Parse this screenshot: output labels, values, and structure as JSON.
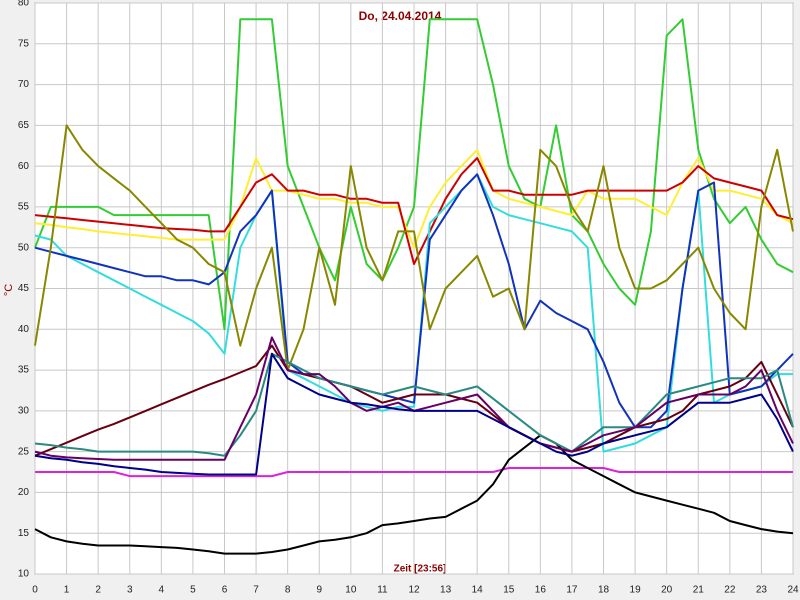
{
  "chart_data": {
    "type": "line",
    "title": "Do, 24.04.2014",
    "x_label": "Zeit [23:56]",
    "y_label": "°C",
    "grid": true,
    "x": [
      0,
      0.5,
      1,
      1.5,
      2,
      2.5,
      3,
      3.5,
      4,
      4.5,
      5,
      5.5,
      6,
      6.5,
      7,
      7.5,
      8,
      8.5,
      9,
      9.5,
      10,
      10.5,
      11,
      11.5,
      12,
      12.5,
      13,
      13.5,
      14,
      14.5,
      15,
      15.5,
      16,
      16.5,
      17,
      17.5,
      18,
      18.5,
      19,
      19.5,
      20,
      20.5,
      21,
      21.5,
      22,
      22.5,
      23,
      23.5,
      24
    ],
    "xlim": [
      0,
      24
    ],
    "xticks": [
      0,
      1,
      2,
      3,
      4,
      5,
      6,
      7,
      8,
      9,
      10,
      11,
      12,
      13,
      14,
      15,
      16,
      17,
      18,
      19,
      20,
      21,
      22,
      23,
      24
    ],
    "ylim": [
      10,
      80
    ],
    "yticks": [
      10,
      15,
      20,
      25,
      30,
      35,
      40,
      45,
      50,
      55,
      60,
      65,
      70,
      75,
      80
    ],
    "series": [
      {
        "color": "#33cc33",
        "values": [
          50,
          55,
          55,
          55,
          55,
          54,
          54,
          54,
          54,
          54,
          54,
          54,
          40,
          78,
          78,
          78,
          60,
          55,
          50,
          46,
          55,
          48,
          46,
          50,
          55,
          78,
          78,
          78,
          78,
          70,
          60,
          56,
          55,
          65,
          54,
          52,
          48,
          45,
          43,
          52,
          76,
          78,
          62,
          56,
          53,
          55,
          51,
          48,
          47
        ]
      },
      {
        "color": "#ffee33",
        "values": [
          53,
          52.8,
          52.5,
          52.3,
          52,
          51.8,
          51.6,
          51.4,
          51.2,
          51,
          51,
          51,
          51,
          55,
          61,
          57,
          57,
          56.5,
          56,
          56,
          55.5,
          55.5,
          55,
          55,
          50,
          55,
          58,
          60,
          62,
          57,
          56,
          55.5,
          55,
          54.5,
          54,
          57,
          56,
          56,
          56,
          55,
          54,
          58,
          61,
          57,
          57,
          56.5,
          56,
          54,
          53
        ]
      },
      {
        "color": "#cc0000",
        "values": [
          54,
          53.8,
          53.6,
          53.4,
          53.2,
          53,
          52.8,
          52.6,
          52.4,
          52.3,
          52.2,
          52,
          52,
          55,
          58,
          59,
          57,
          57,
          56.5,
          56.5,
          56,
          56,
          55.5,
          55.5,
          48,
          52,
          56,
          59,
          61,
          57,
          57,
          56.5,
          56.5,
          56.5,
          56.5,
          57,
          57,
          57,
          57,
          57,
          57,
          58,
          60,
          58.5,
          58,
          57.5,
          57,
          54,
          53.5
        ]
      },
      {
        "color": "#33dddd",
        "values": [
          51.5,
          51,
          49,
          48,
          47,
          46,
          45,
          44,
          43,
          42,
          41,
          39.5,
          37,
          50,
          54,
          57,
          35,
          34,
          33,
          32,
          31,
          30.5,
          30,
          30.5,
          30.5,
          53,
          55,
          57,
          59,
          55,
          54,
          53.5,
          53,
          52.5,
          52,
          50,
          25,
          25.5,
          26,
          27,
          28,
          45,
          57,
          31,
          32,
          32.5,
          33,
          34.5,
          34.5
        ]
      },
      {
        "color": "#1133bb",
        "values": [
          50,
          49.5,
          49,
          48.5,
          48,
          47.5,
          47,
          46.5,
          46.5,
          46,
          46,
          45.5,
          47,
          52,
          54,
          57,
          36,
          34.5,
          34,
          33.5,
          33,
          32.5,
          32,
          31.5,
          31,
          51,
          54,
          57,
          59,
          54,
          48,
          40,
          43.5,
          42,
          41,
          40,
          36,
          31,
          28,
          28,
          30,
          45,
          57,
          58,
          32,
          32.5,
          33,
          35,
          37
        ]
      },
      {
        "color": "#888800",
        "values": [
          38,
          50,
          65,
          62,
          60,
          58.5,
          57,
          55,
          53,
          51,
          50,
          48,
          47,
          38,
          45,
          50,
          35,
          40,
          50,
          43,
          60,
          50,
          46,
          52,
          52,
          40,
          45,
          47,
          49,
          44,
          45,
          40,
          62,
          60,
          55,
          52,
          60,
          50,
          45,
          45,
          46,
          48,
          50,
          45,
          42,
          40,
          55,
          62,
          52
        ]
      },
      {
        "color": "#dd22dd",
        "values": [
          22.5,
          22.5,
          22.5,
          22.5,
          22.5,
          22.5,
          22,
          22,
          22,
          22,
          22,
          22,
          22,
          22,
          22,
          22,
          22.5,
          22.5,
          22.5,
          22.5,
          22.5,
          22.5,
          22.5,
          22.5,
          22.5,
          22.5,
          22.5,
          22.5,
          22.5,
          22.5,
          23,
          23,
          23,
          23,
          23,
          23,
          23,
          22.5,
          22.5,
          22.5,
          22.5,
          22.5,
          22.5,
          22.5,
          22.5,
          22.5,
          22.5,
          22.5,
          22.5
        ]
      },
      {
        "color": "#000000",
        "values": [
          15.5,
          14.5,
          14,
          13.7,
          13.5,
          13.5,
          13.5,
          13.4,
          13.3,
          13.2,
          13,
          12.8,
          12.5,
          12.5,
          12.5,
          12.7,
          13,
          13.5,
          14,
          14.2,
          14.5,
          15,
          16,
          16.2,
          16.5,
          16.8,
          17,
          18,
          19,
          21,
          24,
          25.5,
          27,
          26,
          24,
          23,
          22,
          21,
          20,
          19.5,
          19,
          18.5,
          18,
          17.5,
          16.5,
          16,
          15.5,
          15.2,
          15
        ]
      },
      {
        "color": "#660011",
        "values": [
          24.5,
          25.3,
          26.1,
          26.9,
          27.7,
          28.4,
          29.2,
          30,
          30.8,
          31.6,
          32.4,
          33.2,
          33.9,
          34.7,
          35.5,
          38,
          35,
          34.5,
          34,
          33.5,
          33,
          32,
          31,
          31.5,
          32,
          32,
          32,
          31.5,
          31,
          29.5,
          28,
          27,
          26,
          25.5,
          25,
          25.5,
          26,
          27,
          28,
          28.5,
          29,
          30,
          32,
          32.5,
          33,
          34,
          36,
          32,
          28
        ]
      },
      {
        "color": "#2a8a80",
        "values": [
          26,
          25.8,
          25.5,
          25.3,
          25,
          25,
          25,
          25,
          25,
          25,
          25,
          24.8,
          24.5,
          27,
          30,
          37,
          36,
          35,
          34,
          33.5,
          33,
          32.5,
          32,
          32.5,
          33,
          32.5,
          32,
          32.5,
          33,
          31.5,
          30,
          28.5,
          27,
          26,
          25,
          26.5,
          28,
          28,
          28,
          30,
          32,
          32.5,
          33,
          33.5,
          34,
          34,
          34,
          35,
          28
        ]
      },
      {
        "color": "#660066",
        "values": [
          25,
          24.5,
          24.3,
          24.2,
          24.1,
          24,
          24,
          24,
          24,
          24,
          24,
          24,
          24,
          28,
          32,
          39,
          35,
          34.5,
          34.5,
          33,
          31,
          30,
          30.5,
          31,
          30,
          30.5,
          31,
          31.5,
          32,
          30,
          28,
          27,
          26,
          25.5,
          25,
          26,
          27,
          27.5,
          28,
          29.5,
          31,
          31.5,
          32,
          32,
          32,
          33,
          35,
          30,
          26
        ]
      },
      {
        "color": "#000088",
        "values": [
          24.5,
          24.2,
          24,
          23.7,
          23.5,
          23.2,
          23,
          22.8,
          22.5,
          22.4,
          22.3,
          22.2,
          22.2,
          22.2,
          22.2,
          37,
          34,
          33,
          32,
          31.5,
          31,
          30.8,
          30.5,
          30.2,
          30,
          30,
          30,
          30,
          30,
          29,
          28,
          27,
          26,
          25,
          24.5,
          25,
          26,
          26.5,
          27,
          27.5,
          28,
          29.5,
          31,
          31,
          31,
          31.5,
          32,
          29,
          25
        ]
      }
    ]
  }
}
